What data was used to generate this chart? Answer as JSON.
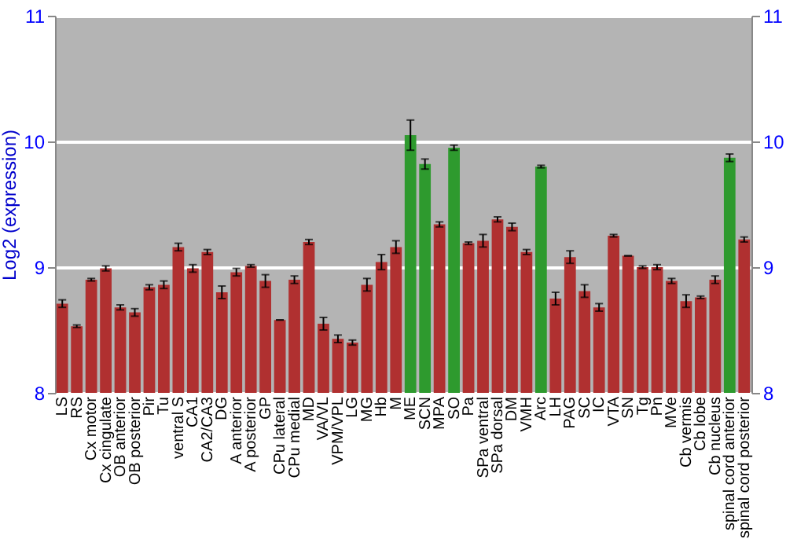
{
  "chart_data": {
    "type": "bar",
    "ylabel": "Log2 (expression)",
    "categories": [
      "LS",
      "RS",
      "Cx motor",
      "Cx cingulate",
      "OB anterior",
      "OB posterior",
      "Pir",
      "Tu",
      "ventral S",
      "CA1",
      "CA2/CA3",
      "DG",
      "A anterior",
      "A posterior",
      "GP",
      "CPu lateral",
      "CPu medial",
      "MD",
      "VA/VL",
      "VPM/VPL",
      "LG",
      "MG",
      "Hb",
      "M",
      "ME",
      "SCN",
      "MPA",
      "SO",
      "Pa",
      "SPa ventral",
      "SPa dorsal",
      "DM",
      "VMH",
      "Arc",
      "LH",
      "PAG",
      "SC",
      "IC",
      "VTA",
      "SN",
      "Tg",
      "Pn",
      "MVe",
      "Cb vermis",
      "Cb lobe",
      "Cb nucleus",
      "spinal cord anterior",
      "spinal cord posterior"
    ],
    "values": [
      8.71,
      8.53,
      8.9,
      8.99,
      8.68,
      8.64,
      8.84,
      8.86,
      9.16,
      8.99,
      9.12,
      8.8,
      8.96,
      9.01,
      8.89,
      8.58,
      8.9,
      9.2,
      8.55,
      8.43,
      8.4,
      8.86,
      9.04,
      9.16,
      10.05,
      9.82,
      9.34,
      9.95,
      9.19,
      9.21,
      9.38,
      9.32,
      9.12,
      9.8,
      8.75,
      9.08,
      8.81,
      8.68,
      9.25,
      9.09,
      9.0,
      9.0,
      8.89,
      8.73,
      8.76,
      8.9,
      9.87,
      9.22
    ],
    "errors": [
      0.03,
      0.01,
      0.01,
      0.02,
      0.02,
      0.03,
      0.02,
      0.03,
      0.03,
      0.03,
      0.02,
      0.05,
      0.03,
      0.01,
      0.05,
      0.0,
      0.03,
      0.02,
      0.05,
      0.03,
      0.02,
      0.05,
      0.06,
      0.05,
      0.12,
      0.04,
      0.02,
      0.02,
      0.01,
      0.05,
      0.02,
      0.03,
      0.02,
      0.01,
      0.05,
      0.05,
      0.05,
      0.03,
      0.01,
      0.0,
      0.01,
      0.02,
      0.02,
      0.05,
      0.01,
      0.03,
      0.03,
      0.02
    ],
    "colors": [
      "#b03030",
      "#b03030",
      "#b03030",
      "#b03030",
      "#b03030",
      "#b03030",
      "#b03030",
      "#b03030",
      "#b03030",
      "#b03030",
      "#b03030",
      "#b03030",
      "#b03030",
      "#b03030",
      "#b03030",
      "#b03030",
      "#b03030",
      "#b03030",
      "#b03030",
      "#b03030",
      "#b03030",
      "#b03030",
      "#b03030",
      "#b03030",
      "#2e9a2e",
      "#2e9a2e",
      "#b03030",
      "#2e9a2e",
      "#b03030",
      "#b03030",
      "#b03030",
      "#b03030",
      "#b03030",
      "#2e9a2e",
      "#b03030",
      "#b03030",
      "#b03030",
      "#b03030",
      "#b03030",
      "#b03030",
      "#b03030",
      "#b03030",
      "#b03030",
      "#b03030",
      "#b03030",
      "#b03030",
      "#2e9a2e",
      "#b03030"
    ],
    "ylim": [
      8,
      11
    ],
    "yticks": [
      8,
      9,
      10,
      11
    ],
    "y2lim": [
      8,
      11
    ],
    "y2ticks": [
      8,
      9,
      10,
      11
    ],
    "grid": "y"
  }
}
